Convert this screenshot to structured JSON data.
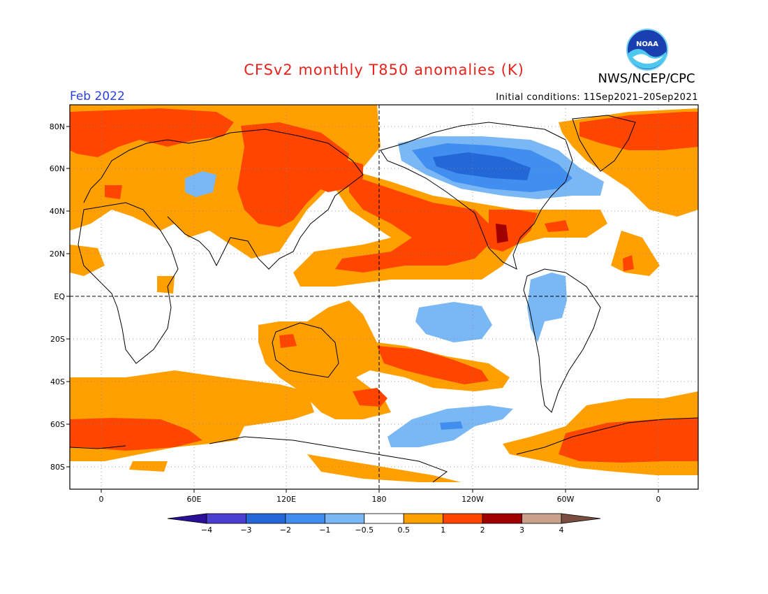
{
  "title": "CFSv2 monthly T850 anomalies (K)",
  "agency": "NWS/NCEP/CPC",
  "logo_text": "NOAA",
  "forecast_month": "Feb 2022",
  "initial_conditions": "Initial conditions: 11Sep2021–20Sep2021",
  "lat_labels": [
    "80N",
    "60N",
    "40N",
    "20N",
    "EQ",
    "20S",
    "40S",
    "60S",
    "80S"
  ],
  "lon_labels": [
    "0",
    "60E",
    "120E",
    "180",
    "120W",
    "60W",
    "0"
  ],
  "colorbar": {
    "ticks": [
      "−4",
      "−3",
      "−2",
      "−1",
      "−0.5",
      "0.5",
      "1",
      "2",
      "3",
      "4"
    ],
    "colors": [
      "#2a0f99",
      "#4b3fcf",
      "#2468d8",
      "#3f8ef0",
      "#7ab8f5",
      "#ffffff",
      "#ffa000",
      "#ff4500",
      "#a00000",
      "#c9a08a",
      "#7a4e40"
    ]
  }
}
